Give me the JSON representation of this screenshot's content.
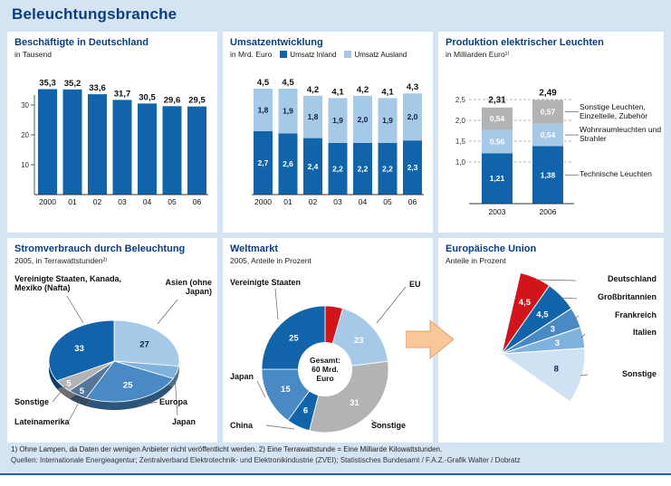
{
  "page_title": "Beleuchtungsbranche",
  "footnote_line": "1) Ohne Lampen, da Daten der wenigen Anbieter nicht veröffentlicht werden.   2) Eine Terrawattstunde = Eine Milliarde Kilowattstunden.",
  "source_line": "Quellen: Internationale Energieagentur; Zentralverband Elektrotechnik- und Elektronikindustrie (ZVEI); Statistisches Bundesamt / F.A.Z.-Grafik Walter / Dobratz",
  "colors": {
    "background": "#d5e4f3",
    "panel": "#ffffff",
    "title_blue": "#0b3d7f",
    "dark_blue": "#1164a9",
    "mid_blue": "#4a8ac4",
    "light_blue": "#a7c9e8",
    "sky_blue": "#7fb2dd",
    "pale_blue": "#cfe2f3",
    "slate_blue": "#54779b",
    "gray": "#b1b3b5",
    "red": "#d2151a",
    "arrow": "#f7c699",
    "rule_blue": "#2b5ea9"
  },
  "chart_data": [
    {
      "id": "beschaeftigte",
      "type": "bar",
      "title": "Beschäftigte in Deutschland",
      "subtitle": "in Tausend",
      "categories": [
        "2000",
        "01",
        "02",
        "03",
        "04",
        "05",
        "06"
      ],
      "values": [
        35.3,
        35.2,
        33.6,
        31.7,
        30.5,
        29.6,
        29.5
      ],
      "value_labels": [
        "35,3",
        "35,2",
        "33,6",
        "31,7",
        "30,5",
        "29,6",
        "29,5"
      ],
      "yticks": [
        10,
        20,
        30
      ],
      "ylim": [
        0,
        40
      ],
      "bar_color": "dark_blue"
    },
    {
      "id": "umsatzentwicklung",
      "type": "stacked_bar",
      "title": "Umsatzentwicklung",
      "subtitle": "in Mrd. Euro",
      "categories": [
        "2000",
        "01",
        "02",
        "03",
        "04",
        "05",
        "06"
      ],
      "series": [
        {
          "name": "Umsatz Inland",
          "color_key": "dark_blue",
          "values": [
            2.7,
            2.6,
            2.4,
            2.2,
            2.2,
            2.2,
            2.3
          ],
          "labels": [
            "2,7",
            "2,6",
            "2,4",
            "2,2",
            "2,2",
            "2,2",
            "2,3"
          ],
          "label_color": "#ffffff"
        },
        {
          "name": "Umsatz Ausland",
          "color_key": "light_blue",
          "values": [
            1.8,
            1.9,
            1.8,
            1.9,
            2.0,
            1.9,
            2.0
          ],
          "labels": [
            "1,8",
            "1,9",
            "1,8",
            "1,9",
            "2,0",
            "1,9",
            "2,0"
          ],
          "label_color": "#0b2240"
        }
      ],
      "totals": [
        "4,5",
        "4,5",
        "4,2",
        "4,1",
        "4,2",
        "4,1",
        "4,3"
      ]
    },
    {
      "id": "produktion",
      "type": "stacked_bar",
      "title": "Produktion elektrischer Leuchten",
      "subtitle": "in Milliarden Euro¹⁾",
      "categories": [
        "2003",
        "2006"
      ],
      "series": [
        {
          "name": "Technische Leuchten",
          "color_key": "dark_blue",
          "values": [
            1.21,
            1.38
          ],
          "labels": [
            "1,21",
            "1,38"
          ],
          "label_color": "#ffffff"
        },
        {
          "name": "Wohnraumleuchten und Strahler",
          "color_key": "light_blue",
          "values": [
            0.56,
            0.54
          ],
          "labels": [
            "0,56",
            "0,54"
          ],
          "label_color": "#ffffff"
        },
        {
          "name": "Sonstige Leuchten, Einzelteile, Zubehör",
          "color_key": "gray",
          "values": [
            0.54,
            0.57
          ],
          "labels": [
            "0,54",
            "0,57"
          ],
          "label_color": "#ffffff"
        }
      ],
      "totals": [
        "2,31",
        "2,49"
      ],
      "yticks": [
        1.0,
        1.5,
        2.0,
        2.5
      ],
      "ytick_labels": [
        "1,0",
        "1,5",
        "2,0",
        "2,5"
      ]
    },
    {
      "id": "stromverbrauch",
      "type": "pie",
      "style": "3d-ellipse",
      "title": "Stromverbrauch durch Beleuchtung",
      "subtitle": "2005, in Terrawattstunden²⁾",
      "slices": [
        {
          "label": "Asien (ohne Japan)",
          "value": 27,
          "show": "27",
          "color_key": "light_blue",
          "value_color": "#0b2240"
        },
        {
          "label": "Japan",
          "value": 5,
          "show": "",
          "color_key": "sky_blue",
          "value_color": "#ffffff"
        },
        {
          "label": "Europa",
          "value": 25,
          "show": "25",
          "color_key": "mid_blue",
          "value_color": "#ffffff"
        },
        {
          "label": "Lateinamerika",
          "value": 5,
          "show": "5",
          "color_key": "slate_blue",
          "value_color": "#ffffff"
        },
        {
          "label": "Sonstige",
          "value": 5,
          "show": "5",
          "color_key": "gray",
          "value_color": "#ffffff"
        },
        {
          "label": "Vereinigte Staaten, Kanada, Mexiko (Nafta)",
          "value": 33,
          "show": "33",
          "color_key": "dark_blue",
          "value_color": "#ffffff"
        }
      ]
    },
    {
      "id": "weltmarkt",
      "type": "donut",
      "title": "Weltmarkt",
      "subtitle": "2005, Anteile in Prozent",
      "center_label_lines": [
        "Gesamt:",
        "60 Mrd.",
        "Euro"
      ],
      "eu_total_value": 23,
      "slices": [
        {
          "label": "Deutschland-Anteil der EU",
          "value": 4.5,
          "show": "",
          "color_key": "red",
          "value_color": "#ffffff"
        },
        {
          "label": "EU",
          "value": 18.5,
          "show": "23",
          "color_key": "light_blue",
          "value_color": "#ffffff"
        },
        {
          "label": "Sonstige",
          "value": 31,
          "show": "31",
          "color_key": "gray",
          "value_color": "#ffffff"
        },
        {
          "label": "China",
          "value": 6,
          "show": "6",
          "color_key": "dark_blue",
          "value_color": "#ffffff"
        },
        {
          "label": "Japan",
          "value": 15,
          "show": "15",
          "color_key": "mid_blue",
          "value_color": "#ffffff"
        },
        {
          "label": "Vereinigte Staaten",
          "value": 25,
          "show": "25",
          "color_key": "dark_blue",
          "value_color": "#ffffff"
        }
      ]
    },
    {
      "id": "europaeische-union",
      "type": "fan",
      "title": "Europäische Union",
      "subtitle": "Anteile in Prozent",
      "slices": [
        {
          "label": "Deutschland",
          "value": 4.5,
          "show": "4,5",
          "color_key": "red",
          "value_color": "#ffffff"
        },
        {
          "label": "Großbritannien",
          "value": 4.5,
          "show": "4,5",
          "color_key": "dark_blue",
          "value_color": "#ffffff"
        },
        {
          "label": "Frankreich",
          "value": 3,
          "show": "3",
          "color_key": "mid_blue",
          "value_color": "#ffffff"
        },
        {
          "label": "Italien",
          "value": 3,
          "show": "3",
          "color_key": "sky_blue",
          "value_color": "#ffffff"
        },
        {
          "label": "Sonstige",
          "value": 8,
          "show": "8",
          "color_key": "pale_blue",
          "value_color": "#0b2240"
        }
      ]
    }
  ]
}
